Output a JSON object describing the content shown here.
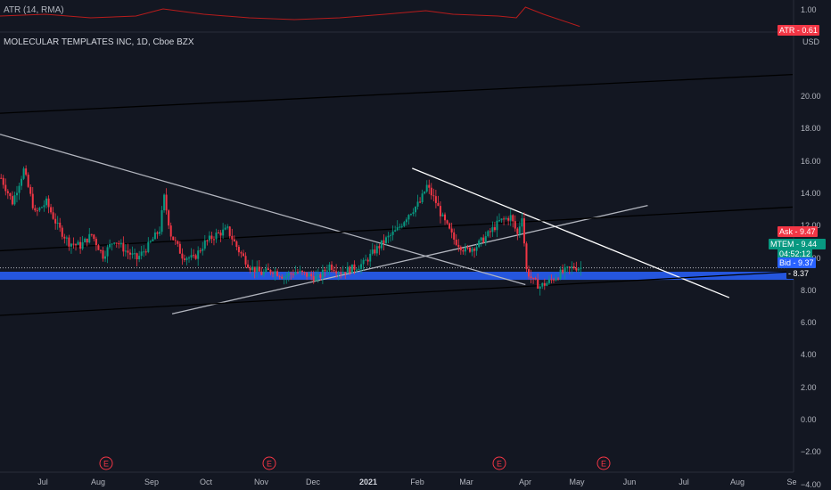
{
  "atr_panel": {
    "title": "ATR (14, RMA)",
    "top_tick": "1.00",
    "badge": "ATR - 0.61"
  },
  "header": {
    "title": "MOLECULAR TEMPLATES INC, 1D, Cboe BZX",
    "currency": "USD"
  },
  "price_tags": {
    "ask": "Ask - 9.47",
    "symbol": "MTEM - 9.44",
    "timer": "04:52:12",
    "bid": "Bid - 9.37",
    "low": "- 8.37"
  },
  "colors": {
    "up": "#089981",
    "down": "#f23645",
    "background": "#131722",
    "band": "#2962ff",
    "atr_line": "#b71c1c"
  },
  "chart_data": {
    "type": "candlestick",
    "title": "MOLECULAR TEMPLATES INC, 1D, Cboe BZX",
    "ylabel": "USD",
    "ylim": [
      -5,
      24
    ],
    "yticks": [
      "20.00",
      "18.00",
      "16.00",
      "14.00",
      "12.00",
      "10.00",
      "8.00",
      "6.00",
      "4.00",
      "2.00",
      "0.00",
      "−2.00",
      "−4.00"
    ],
    "ytick_values": [
      20,
      18,
      16,
      14,
      12,
      10,
      8,
      6,
      4,
      2,
      0,
      -2,
      -4
    ],
    "xticks": [
      "Jul",
      "Aug",
      "Sep",
      "Oct",
      "Nov",
      "Dec",
      "2021",
      "Feb",
      "Mar",
      "Apr",
      "May",
      "Jun",
      "Jul",
      "Aug",
      "Se"
    ],
    "earnings_markers": [
      "E",
      "E",
      "E",
      "E"
    ],
    "price_path": [
      [
        0,
        15.0
      ],
      [
        5,
        13.5
      ],
      [
        10,
        15.5
      ],
      [
        15,
        12.8
      ],
      [
        20,
        13.5
      ],
      [
        25,
        12.0
      ],
      [
        30,
        11.0
      ],
      [
        35,
        10.8
      ],
      [
        40,
        11.5
      ],
      [
        45,
        10.2
      ],
      [
        50,
        11.2
      ],
      [
        55,
        10.5
      ],
      [
        60,
        10.0
      ],
      [
        65,
        10.8
      ],
      [
        70,
        11.8
      ],
      [
        72,
        13.8
      ],
      [
        75,
        11.5
      ],
      [
        80,
        10.2
      ],
      [
        85,
        10.0
      ],
      [
        90,
        11.0
      ],
      [
        95,
        11.5
      ],
      [
        100,
        11.8
      ],
      [
        105,
        10.5
      ],
      [
        110,
        9.5
      ],
      [
        115,
        9.1
      ],
      [
        120,
        9.3
      ],
      [
        125,
        8.9
      ],
      [
        130,
        9.2
      ],
      [
        135,
        9.0
      ],
      [
        140,
        8.8
      ],
      [
        145,
        9.6
      ],
      [
        150,
        9.2
      ],
      [
        155,
        9.4
      ],
      [
        160,
        9.7
      ],
      [
        165,
        10.5
      ],
      [
        170,
        11.2
      ],
      [
        175,
        11.8
      ],
      [
        180,
        12.8
      ],
      [
        185,
        13.5
      ],
      [
        188,
        14.5
      ],
      [
        192,
        13.5
      ],
      [
        195,
        12.5
      ],
      [
        200,
        11.2
      ],
      [
        205,
        10.5
      ],
      [
        210,
        10.8
      ],
      [
        215,
        11.5
      ],
      [
        220,
        12.3
      ],
      [
        225,
        12.6
      ],
      [
        228,
        11.5
      ],
      [
        230,
        12.7
      ],
      [
        232,
        9.3
      ],
      [
        235,
        8.6
      ],
      [
        238,
        8.3
      ],
      [
        241,
        8.5
      ],
      [
        244,
        8.8
      ],
      [
        247,
        9.1
      ],
      [
        250,
        9.3
      ],
      [
        253,
        9.5
      ],
      [
        256,
        9.44
      ]
    ],
    "atr_path": [
      [
        0,
        0.9
      ],
      [
        20,
        0.95
      ],
      [
        40,
        0.85
      ],
      [
        60,
        0.9
      ],
      [
        72,
        1.1
      ],
      [
        90,
        0.95
      ],
      [
        110,
        0.85
      ],
      [
        130,
        0.8
      ],
      [
        150,
        0.85
      ],
      [
        170,
        0.95
      ],
      [
        188,
        1.05
      ],
      [
        200,
        0.95
      ],
      [
        220,
        0.9
      ],
      [
        228,
        0.85
      ],
      [
        232,
        1.15
      ],
      [
        240,
        0.95
      ],
      [
        256,
        0.61
      ]
    ],
    "trendlines": [
      {
        "from": [
          0,
          17.7
        ],
        "to": [
          232,
          8.4
        ],
        "color": "#b2b5be"
      },
      {
        "from": [
          76,
          6.6
        ],
        "to": [
          286,
          13.3
        ],
        "color": "#b2b5be"
      },
      {
        "from": [
          182,
          15.6
        ],
        "to": [
          322,
          7.6
        ],
        "color": "#ffffff"
      },
      {
        "from": [
          0,
          19.0
        ],
        "to": [
          350,
          21.4
        ],
        "color": "#000000"
      },
      {
        "from": [
          0,
          10.5
        ],
        "to": [
          350,
          13.2
        ],
        "color": "#000000"
      },
      {
        "from": [
          0,
          6.5
        ],
        "to": [
          350,
          9.2
        ],
        "color": "#000000"
      }
    ],
    "band": [
      8.7,
      9.2
    ],
    "last_price": 9.44,
    "ask": 9.47,
    "bid": 9.37
  }
}
